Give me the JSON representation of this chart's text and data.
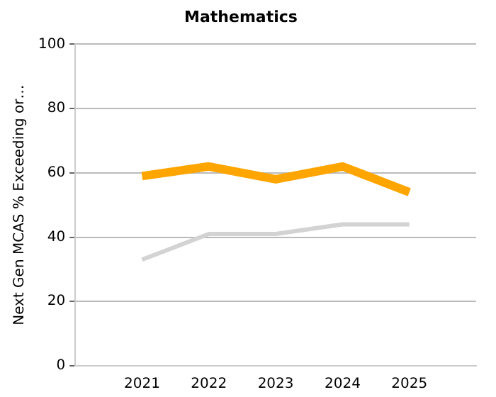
{
  "chart_data": {
    "type": "line",
    "title": "Mathematics",
    "ylabel": "Next Gen MCAS % Exceeding or…",
    "categories": [
      null,
      "2021",
      "2022",
      "2023",
      "2024",
      "2025",
      null
    ],
    "series": [
      {
        "color": "#ffa500",
        "values": [
          null,
          59,
          62,
          58,
          62,
          54,
          null
        ]
      },
      {
        "color": "#d3d3d3",
        "values": [
          null,
          33,
          41,
          41,
          44,
          44,
          null
        ]
      }
    ],
    "ylim": [
      0,
      100
    ],
    "yticks": [
      0,
      20,
      40,
      60,
      80,
      100
    ],
    "grid": "y",
    "legend": false,
    "marker": "none",
    "line_style": "solid"
  }
}
